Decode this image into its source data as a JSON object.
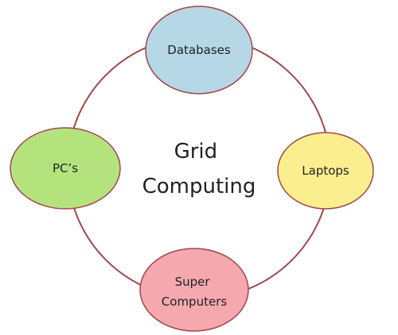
{
  "diagram": {
    "center": {
      "lines": [
        "Grid",
        "Computing"
      ]
    },
    "ring_color": "#a0484d",
    "node_stroke": "#a0484d",
    "nodes": [
      {
        "id": "databases",
        "lines": [
          "Databases"
        ],
        "color": "#b6d7e6"
      },
      {
        "id": "laptops",
        "lines": [
          "Laptops"
        ],
        "color": "#fbee8e"
      },
      {
        "id": "super-computers",
        "lines": [
          "Super",
          "Computers"
        ],
        "color": "#f5a9ae"
      },
      {
        "id": "pcs",
        "lines": [
          "PC’s"
        ],
        "color": "#b4e37e"
      }
    ]
  }
}
